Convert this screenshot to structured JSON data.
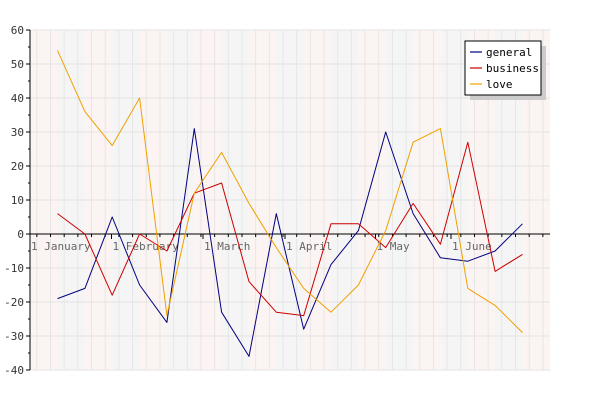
{
  "chart_data": {
    "type": "line",
    "title": "",
    "xlabel": "",
    "ylabel": "",
    "ylim": [
      -40,
      60
    ],
    "y_ticks": [
      60,
      50,
      40,
      30,
      20,
      10,
      0,
      -10,
      -20,
      -30,
      -40
    ],
    "grid": true,
    "legend_position": "top-right",
    "x_tick_labels": [
      "1 January",
      "1 February",
      "1 March",
      "1 April",
      "1 May",
      "1 June"
    ],
    "series": [
      {
        "name": "general",
        "color": "#000080",
        "values": [
          -19,
          -16,
          5,
          -15,
          -26,
          31,
          -23,
          -36,
          6,
          -28,
          -9,
          1,
          30,
          6,
          -7,
          -8,
          -5,
          3
        ]
      },
      {
        "name": "business",
        "color": "#cc0000",
        "values": [
          6,
          0,
          -18,
          0,
          -5,
          12,
          15,
          -14,
          -23,
          -24,
          3,
          3,
          -4,
          9,
          -3,
          27,
          -11,
          -6
        ]
      },
      {
        "name": "love",
        "color": "#f0a000",
        "values": [
          54,
          36,
          26,
          40,
          -24,
          12,
          24,
          9,
          -4,
          -16,
          -23,
          -15,
          1,
          27,
          31,
          -16,
          -21,
          -29
        ]
      }
    ]
  }
}
